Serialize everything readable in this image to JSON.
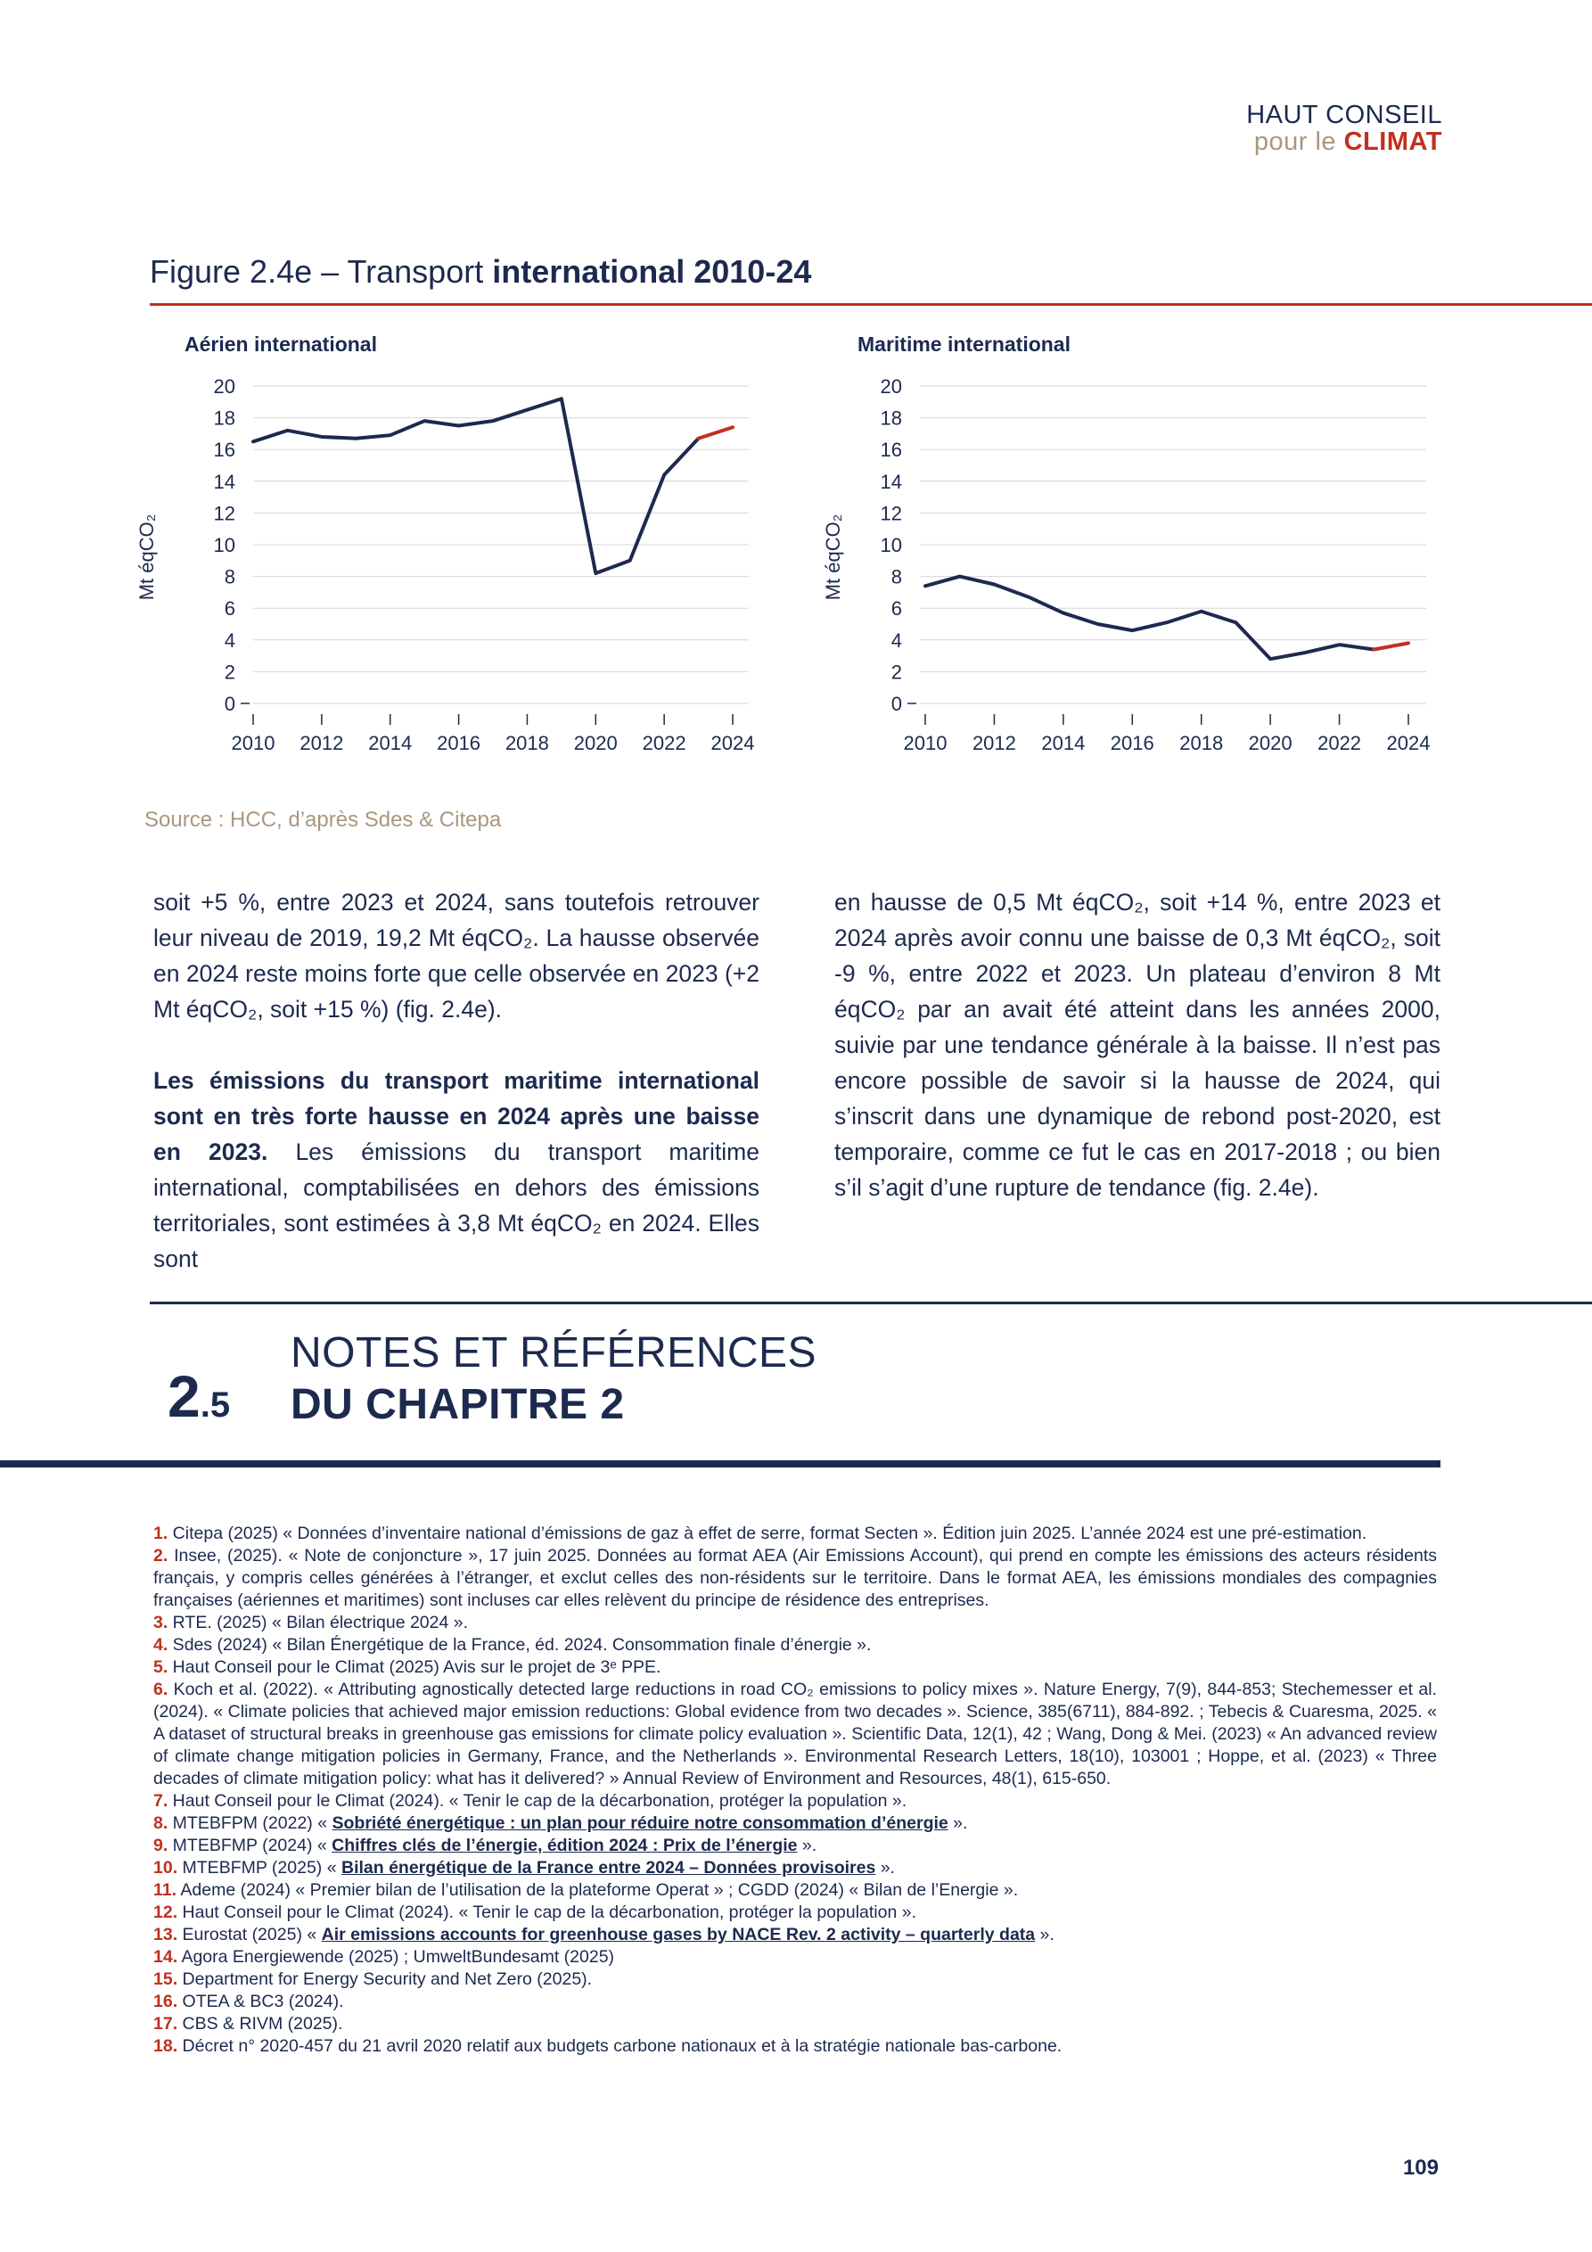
{
  "header": {
    "logo_line1": "HAUT CONSEIL",
    "logo_line2_a": "pour le ",
    "logo_line2_b": "CLIMAT"
  },
  "figure": {
    "title_prefix": "Figure 2.4e – Transport ",
    "title_bold": "international 2010-24",
    "source": "Source : HCC, d’après Sdes & Citepa"
  },
  "chart_data": [
    {
      "type": "line",
      "title": "Aérien international",
      "ylabel": "Mt éqCO₂",
      "ylim": [
        0,
        20
      ],
      "yticks": [
        0,
        2,
        4,
        6,
        8,
        10,
        12,
        14,
        16,
        18,
        20
      ],
      "xticks": [
        2010,
        2012,
        2014,
        2016,
        2018,
        2020,
        2022,
        2024
      ],
      "x": [
        2010,
        2011,
        2012,
        2013,
        2014,
        2015,
        2016,
        2017,
        2018,
        2019,
        2020,
        2021,
        2022,
        2023,
        2024
      ],
      "values": [
        16.5,
        17.2,
        16.8,
        16.7,
        16.9,
        17.8,
        17.5,
        17.8,
        18.5,
        19.2,
        8.2,
        9.0,
        14.4,
        16.7,
        17.4
      ],
      "highlight_from": 2023,
      "colors": {
        "line": "#1d2a4f",
        "highlight": "#c0301f"
      }
    },
    {
      "type": "line",
      "title": "Maritime international",
      "ylabel": "Mt éqCO₂",
      "ylim": [
        0,
        20
      ],
      "yticks": [
        0,
        2,
        4,
        6,
        8,
        10,
        12,
        14,
        16,
        18,
        20
      ],
      "xticks": [
        2010,
        2012,
        2014,
        2016,
        2018,
        2020,
        2022,
        2024
      ],
      "x": [
        2010,
        2011,
        2012,
        2013,
        2014,
        2015,
        2016,
        2017,
        2018,
        2019,
        2020,
        2021,
        2022,
        2023,
        2024
      ],
      "values": [
        7.4,
        8.0,
        7.5,
        6.7,
        5.7,
        5.0,
        4.6,
        5.1,
        5.8,
        5.1,
        2.8,
        3.2,
        3.7,
        3.4,
        3.8
      ],
      "highlight_from": 2023,
      "colors": {
        "line": "#1d2a4f",
        "highlight": "#c0301f"
      }
    }
  ],
  "body": {
    "left_p1": "soit +5 %, entre 2023 et 2024, sans toutefois retrouver leur niveau de 2019, 19,2 Mt éqCO₂. La hausse observée en 2024 reste moins forte que celle observée en 2023 (+2 Mt éqCO₂, soit +15 %) (fig. 2.4e).",
    "left_p2_bold": "Les émissions du transport maritime international sont en très forte hausse en 2024 après une baisse en 2023.",
    "left_p2_rest": " Les émissions du transport maritime international, comptabilisées en dehors des émissions territoriales, sont estimées à 3,8 Mt éqCO₂ en 2024. Elles sont",
    "right_p1": "en hausse de 0,5 Mt éqCO₂, soit +14 %, entre 2023 et 2024 après avoir connu une baisse de 0,3 Mt éqCO₂, soit -9 %, entre 2022 et 2023. Un plateau d’environ 8 Mt éqCO₂ par an avait été atteint dans les années 2000, suivie par une tendance générale à la baisse. Il n’est pas encore possible de savoir si la hausse de 2024, qui s’inscrit dans une dynamique de rebond post-2020, est temporaire, comme ce fut le cas en 2017-2018 ; ou bien s’il s’agit d’une rupture de tendance (fig. 2.4e)."
  },
  "section": {
    "num": "2",
    "num_sub": ".5",
    "title1": "NOTES ET RÉFÉRENCES",
    "title2": "DU CHAPITRE 2"
  },
  "notes": [
    {
      "n": "1.",
      "a": " Citepa (2025) « Données d’inventaire national d’émissions de gaz à effet de serre, format Secten ». Édition juin 2025. L’année 2024 est une pré-estimation."
    },
    {
      "n": "2.",
      "a": " Insee, (2025). « Note de conjoncture », 17 juin 2025. Données au format AEA (Air Emissions Account), qui prend en compte les émissions des acteurs résidents français, y compris celles générées à l’étranger, et exclut celles des non-résidents sur le territoire. Dans le format AEA, les émissions mondiales des compagnies françaises (aériennes et maritimes) sont incluses car elles relèvent du principe de résidence des entreprises."
    },
    {
      "n": "3.",
      "a": " RTE. (2025) « Bilan électrique 2024 »."
    },
    {
      "n": "4.",
      "a": " Sdes (2024) « Bilan Énergétique de la France, éd. 2024. Consommation finale d’énergie »."
    },
    {
      "n": "5.",
      "a": " Haut Conseil pour le Climat (2025) Avis sur le projet de 3ᵉ PPE."
    },
    {
      "n": "6.",
      "a": " Koch et al. (2022). « Attributing agnostically detected large reductions in road CO₂ emissions to policy mixes ». Nature Energy, 7(9), 844-853; Stechemesser et al. (2024). « Climate policies that achieved major emission reductions: Global evidence from two decades ». Science, 385(6711), 884-892. ; Tebecis & Cuaresma, 2025. « A dataset of structural breaks in greenhouse gas emissions for climate policy evaluation ». Scientific Data, 12(1), 42 ; Wang, Dong & Mei. (2023) « An advanced review of climate change mitigation policies in Germany, France, and the Netherlands ». Environmental Research Letters, 18(10), 103001 ; Hoppe, et al. (2023) « Three decades of climate mitigation policy: what has it delivered? » Annual Review of Environment and Resources, 48(1), 615-650."
    },
    {
      "n": "7.",
      "a": " Haut Conseil pour le Climat (2024). « Tenir le cap de la décarbonation, protéger la population »."
    },
    {
      "n": "8.",
      "a": " MTEBFPM (2022) « ",
      "l": "Sobriété énergétique : un plan pour réduire notre consommation d’énergie",
      "b": " »."
    },
    {
      "n": "9.",
      "a": " MTEBFMP (2024) « ",
      "l": "Chiffres clés de l’énergie, édition 2024 : Prix de l’énergie",
      "b": " »."
    },
    {
      "n": "10.",
      "a": " MTEBFMP (2025) « ",
      "l": "Bilan énergétique de la France entre 2024 – Données provisoires",
      "b": " »."
    },
    {
      "n": "11.",
      "a": " Ademe (2024) « Premier bilan de l’utilisation de la plateforme Operat » ; CGDD (2024) « Bilan de l’Energie »."
    },
    {
      "n": "12.",
      "a": " Haut Conseil pour le Climat (2024). « Tenir le cap de la décarbonation, protéger la population »."
    },
    {
      "n": "13.",
      "a": " Eurostat (2025) « ",
      "l": "Air emissions accounts for greenhouse gases by NACE Rev. 2 activity – quarterly data",
      "b": " »."
    },
    {
      "n": "14.",
      "a": " Agora Energiewende (2025) ; UmweltBundesamt (2025)"
    },
    {
      "n": "15.",
      "a": " Department for Energy Security and Net Zero (2025)."
    },
    {
      "n": "16.",
      "a": " OTEA & BC3 (2024)."
    },
    {
      "n": "17.",
      "a": " CBS & RIVM (2025)."
    },
    {
      "n": "18.",
      "a": " Décret n° 2020-457 du 21 avril 2020 relatif aux budgets carbone nationaux et à la stratégie nationale bas-carbone."
    }
  ],
  "page_number": "109"
}
